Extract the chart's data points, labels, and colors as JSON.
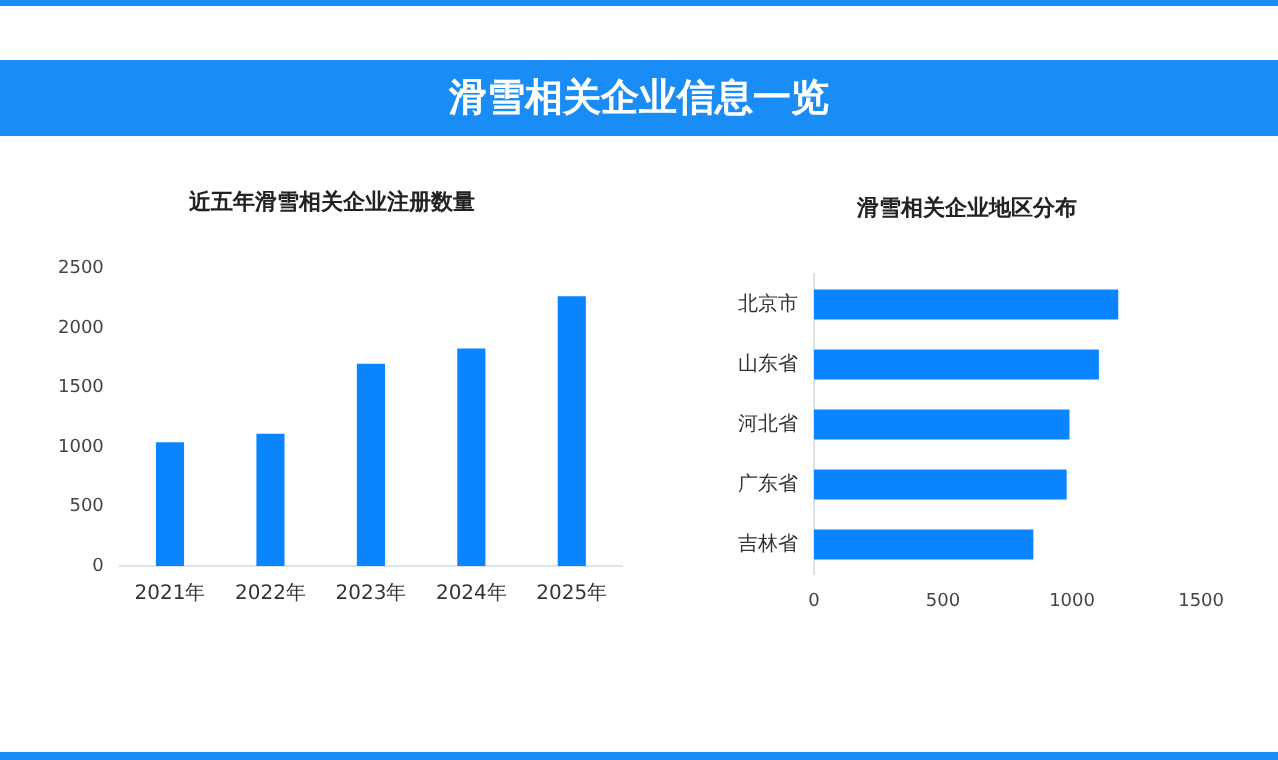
{
  "chart_data": [
    {
      "type": "other",
      "title": "滑雪相关企业信息一览"
    },
    {
      "type": "bar",
      "title": "近五年滑雪相关企业注册数量",
      "categories": [
        "2021年",
        "2022年",
        "2023年",
        "2024年",
        "2025年"
      ],
      "values": [
        1040,
        1112,
        1700,
        1827,
        2266
      ],
      "color": "#0a84ff",
      "ylim": [
        0,
        2500
      ],
      "yticks": [
        0,
        500,
        1000,
        1500,
        2000,
        2500
      ],
      "grid": false,
      "legend": false
    },
    {
      "type": "bar",
      "orientation": "horizontal",
      "title": "滑雪相关企业地区分布",
      "categories": [
        "北京市",
        "山东省",
        "河北省",
        "广东省",
        "吉林省"
      ],
      "values": [
        1179,
        1104,
        990,
        979,
        850
      ],
      "color": "#0a84ff",
      "xlim": [
        0,
        1500
      ],
      "xticks": [
        0,
        500,
        1000,
        1500
      ],
      "grid": false,
      "legend": false
    }
  ]
}
